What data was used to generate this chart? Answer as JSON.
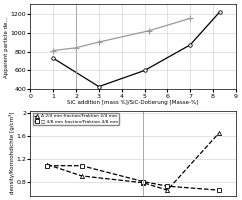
{
  "top_chart": {
    "line1": {
      "x": [
        1,
        3,
        5,
        7,
        8.3
      ],
      "y": [
        730,
        430,
        600,
        870,
        1220
      ],
      "color": "#000000",
      "marker": "o",
      "marker_size": 2.5,
      "marker_face": "white",
      "linewidth": 0.9
    },
    "line2": {
      "x": [
        1,
        2,
        3,
        5.2,
        7
      ],
      "y": [
        810,
        840,
        900,
        1020,
        1150
      ],
      "color": "#999999",
      "marker": "+",
      "marker_size": 4,
      "linewidth": 0.9
    },
    "xlabel": "SiC addition [mass %]/SiC-Dotierung [Masse-%]",
    "ylabel": "Apparent particle de...",
    "xlim": [
      0,
      9
    ],
    "ylim": [
      400,
      1300
    ],
    "yticks": [
      400,
      600,
      800,
      1000,
      1200
    ],
    "xticks": [
      0,
      1,
      2,
      3,
      4,
      5,
      6,
      7,
      8,
      9
    ],
    "vline_x": 2
  },
  "bottom_chart": {
    "line1_triangle": {
      "label": "Δ 2/4 mm fraction/Fraktion 2/4 mm",
      "x": [
        20,
        30,
        48,
        55,
        70
      ],
      "y": [
        1.1,
        0.9,
        0.78,
        0.65,
        1.65
      ],
      "color": "#000000",
      "marker": "^",
      "marker_size": 3,
      "marker_face": "white",
      "linestyle": "--",
      "linewidth": 0.9
    },
    "line2_square": {
      "label": "□ 4/8 mm fraction/Fraktion 4/8 mm",
      "x": [
        20,
        30,
        48,
        55,
        70
      ],
      "y": [
        1.08,
        1.08,
        0.8,
        0.72,
        0.65
      ],
      "color": "#000000",
      "marker": "s",
      "marker_size": 3,
      "marker_face": "white",
      "linestyle": "--",
      "linewidth": 0.9
    },
    "ylabel": "density/Kornrohdichte [g/cm³]",
    "xlim": [
      15,
      75
    ],
    "ylim": [
      0.55,
      2.05
    ],
    "yticks": [
      0.8,
      1.2,
      1.6,
      2.0
    ],
    "ytick_labels": [
      "0.8",
      "1.2",
      "1.6",
      "2"
    ],
    "xticks": [],
    "vline_x": 48
  },
  "background_color": "#ffffff",
  "top_ylabel": "Apparent particle de...",
  "xlabel_fontsize": 4.0,
  "ylabel_fontsize": 4.0,
  "tick_fontsize": 4.5,
  "legend_fontsize": 3.2
}
